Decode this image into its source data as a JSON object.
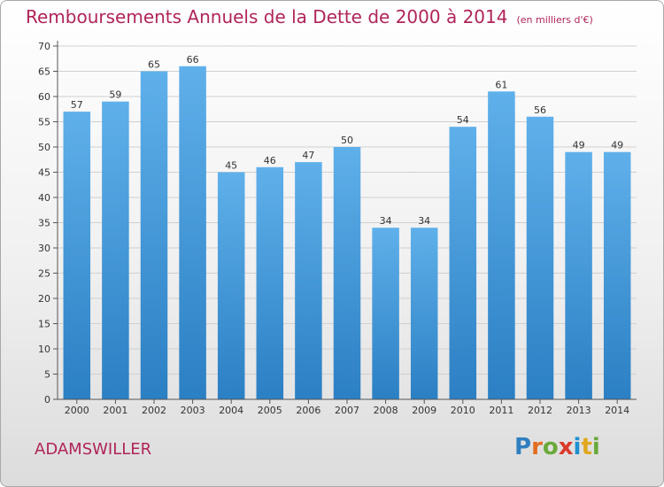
{
  "title": "Remboursements Annuels de la Dette de 2000 à 2014",
  "unit": "(en milliers d'€)",
  "commune": "ADAMSWILLER",
  "brand": {
    "name": "Proxiti",
    "letters": [
      "P",
      "r",
      "o",
      "x",
      "i",
      "t",
      "i"
    ],
    "colors": [
      "#2f7fc1",
      "#e26d1f",
      "#6aa93a",
      "#d93a2b",
      "#1f8fd0",
      "#e0a81f",
      "#6aa93a"
    ]
  },
  "colors": {
    "title": "#b0245a",
    "bar_top": "#5fb0ea",
    "bar_bottom": "#2b7fc3",
    "axis": "#555555",
    "grid": "#d0d0d0"
  },
  "chart_data": {
    "type": "bar",
    "title": "Remboursements Annuels de la Dette de 2000 à 2014",
    "xlabel": "",
    "ylabel": "",
    "ylim": [
      0,
      70
    ],
    "yticks": [
      0,
      5,
      10,
      15,
      20,
      25,
      30,
      35,
      40,
      45,
      50,
      55,
      60,
      65,
      70
    ],
    "grid": true,
    "categories": [
      "2000",
      "2001",
      "2002",
      "2003",
      "2004",
      "2005",
      "2006",
      "2007",
      "2008",
      "2009",
      "2010",
      "2011",
      "2012",
      "2013",
      "2014"
    ],
    "values": [
      57,
      59,
      65,
      66,
      45,
      46,
      47,
      50,
      34,
      34,
      54,
      61,
      56,
      49,
      49
    ]
  }
}
